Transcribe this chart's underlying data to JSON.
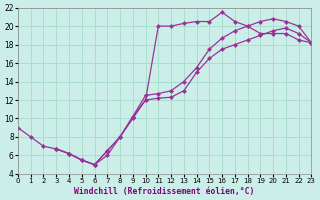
{
  "title": "",
  "xlabel": "Windchill (Refroidissement éolien,°C)",
  "ylabel": "",
  "bg_color": "#cceee8",
  "grid_color": "#aaddcc",
  "line_color": "#993399",
  "marker_color": "#993399",
  "xlim": [
    0,
    23
  ],
  "ylim": [
    4,
    22
  ],
  "xticks": [
    0,
    1,
    2,
    3,
    4,
    5,
    6,
    7,
    8,
    9,
    10,
    11,
    12,
    13,
    14,
    15,
    16,
    17,
    18,
    19,
    20,
    21,
    22,
    23
  ],
  "yticks": [
    4,
    6,
    8,
    10,
    12,
    14,
    16,
    18,
    20,
    22
  ],
  "series1_x": [
    0,
    1,
    2,
    3,
    4,
    5,
    6,
    7,
    8,
    9,
    10,
    11,
    12,
    13,
    14,
    15,
    16,
    17,
    18,
    19,
    20,
    21,
    22,
    23
  ],
  "series1_y": [
    9.0,
    8.0,
    7.0,
    6.7,
    6.2,
    5.5,
    5.0,
    6.0,
    8.0,
    10.0,
    12.0,
    20.0,
    20.0,
    20.3,
    20.5,
    20.5,
    21.5,
    20.5,
    20.0,
    19.2,
    19.2,
    19.2,
    18.5,
    18.2
  ],
  "series2_x": [
    3,
    4,
    5,
    6,
    7,
    8,
    9,
    10,
    11,
    12,
    13,
    14,
    15,
    16,
    17,
    18,
    19,
    20,
    21,
    22,
    23
  ],
  "series2_y": [
    6.7,
    6.2,
    5.5,
    5.0,
    6.5,
    8.0,
    10.2,
    12.0,
    12.2,
    12.3,
    13.0,
    15.0,
    16.5,
    17.5,
    18.0,
    18.5,
    19.0,
    19.5,
    19.8,
    19.2,
    18.2
  ],
  "series3_x": [
    3,
    4,
    5,
    6,
    7,
    8,
    9,
    10,
    11,
    12,
    13,
    14,
    15,
    16,
    17,
    18,
    19,
    20,
    21,
    22,
    23
  ],
  "series3_y": [
    6.7,
    6.2,
    5.5,
    5.0,
    6.5,
    8.0,
    10.2,
    12.5,
    12.7,
    13.0,
    14.0,
    15.5,
    17.5,
    18.7,
    19.5,
    20.0,
    20.5,
    20.8,
    20.5,
    20.0,
    18.2
  ]
}
